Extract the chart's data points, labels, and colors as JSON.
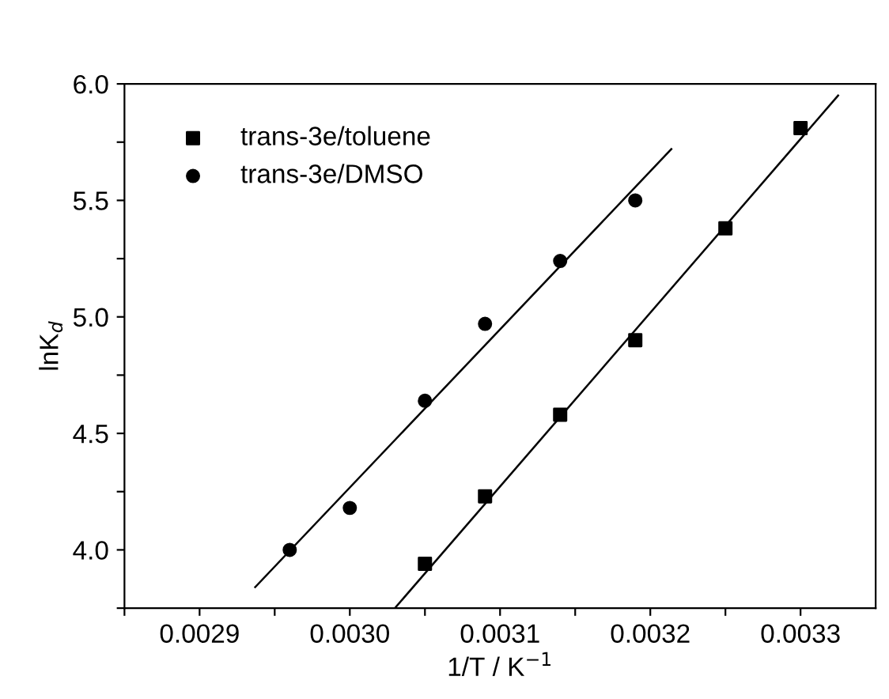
{
  "chart_data": {
    "type": "scatter",
    "xlabel": "1/T / K$^{−1}$",
    "ylabel": "lnK$_{d}$",
    "xlim": [
      0.00285,
      0.00335
    ],
    "ylim": [
      3.75,
      6.0
    ],
    "xticks": [
      {
        "value": 0.00285,
        "label": null
      },
      0.0029,
      {
        "value": 0.00295,
        "label": null
      },
      {
        "value": 0.003,
        "label": "0.0030"
      },
      {
        "value": 0.00305,
        "label": null
      },
      0.0031,
      {
        "value": 0.00315,
        "label": null
      },
      0.0032,
      {
        "value": 0.00325,
        "label": null
      },
      0.0033
    ],
    "yticks": [
      {
        "value": 3.75,
        "label": null
      },
      {
        "value": 4.0,
        "label": "4.0"
      },
      {
        "value": 4.25,
        "label": null
      },
      {
        "value": 4.5,
        "label": "4.5"
      },
      {
        "value": 4.75,
        "label": null
      },
      {
        "value": 5.0,
        "label": "5.0"
      },
      {
        "value": 5.25,
        "label": null
      },
      {
        "value": 5.5,
        "label": "5.5"
      },
      {
        "value": 5.75,
        "label": null
      },
      {
        "value": 6.0,
        "label": "6.0"
      }
    ],
    "legend": "top left",
    "grid": false,
    "series": [
      {
        "name": "trans-3e/toluene",
        "color": "#000000",
        "marker": "square",
        "x": [
          0.00305,
          0.00309,
          0.00314,
          0.00319,
          0.00325,
          0.0033
        ],
        "values": [
          3.94,
          4.23,
          4.58,
          4.9,
          5.38,
          5.81
        ]
      },
      {
        "name": "trans-3e/DMSO",
        "color": "#000000",
        "marker": "circle",
        "x": [
          0.00296,
          0.003,
          0.00305,
          0.00309,
          0.00314,
          0.00319
        ],
        "values": [
          4.0,
          4.18,
          4.64,
          4.97,
          5.24,
          5.5
        ]
      },
      {
        "type": "line",
        "color": "#000000",
        "x": [
          0.00303,
          0.003325
        ],
        "values": [
          3.75,
          5.95
        ]
      },
      {
        "type": "line",
        "color": "#000000",
        "x": [
          0.002937,
          0.003214
        ],
        "values": [
          3.84,
          5.72
        ]
      }
    ]
  }
}
